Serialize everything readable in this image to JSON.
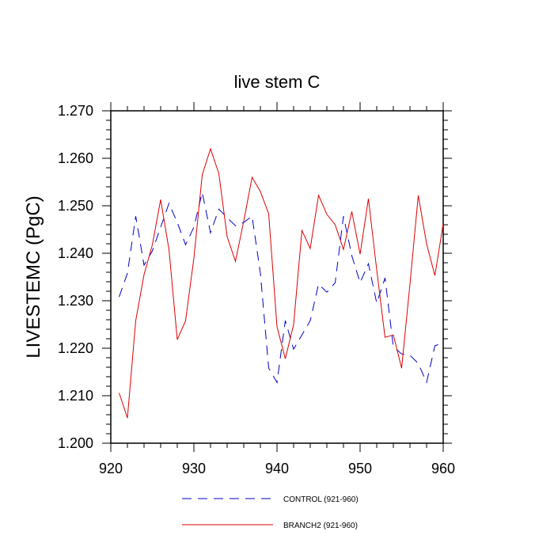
{
  "chart_data": {
    "type": "line",
    "title": "live stem C",
    "xlabel": "",
    "ylabel": "LIVESTEMC  (PgC)",
    "xlim": [
      920,
      960
    ],
    "ylim": [
      1.2,
      1.27
    ],
    "xticks": [
      920,
      930,
      940,
      950,
      960
    ],
    "xtick_labels": [
      "920",
      "930",
      "940",
      "950",
      "960"
    ],
    "yticks": [
      1.2,
      1.21,
      1.22,
      1.23,
      1.24,
      1.25,
      1.26,
      1.27
    ],
    "ytick_labels": [
      "1.200",
      "1.210",
      "1.220",
      "1.230",
      "1.240",
      "1.250",
      "1.260",
      "1.270"
    ],
    "grid": false,
    "legend_position": "bottom-center",
    "x": [
      921,
      922,
      923,
      924,
      925,
      926,
      927,
      928,
      929,
      930,
      931,
      932,
      933,
      934,
      935,
      936,
      937,
      938,
      939,
      940,
      941,
      942,
      943,
      944,
      945,
      946,
      947,
      948,
      949,
      950,
      951,
      952,
      953,
      954,
      955,
      956,
      957,
      958,
      959,
      960
    ],
    "series": [
      {
        "name": "CONTROL (921-960)",
        "color": "#0000cc",
        "style": "dashed",
        "values": [
          1.2308,
          1.2358,
          1.2478,
          1.2375,
          1.2405,
          1.2455,
          1.2505,
          1.2465,
          1.2418,
          1.2455,
          1.2528,
          1.2443,
          1.2493,
          1.2475,
          1.2458,
          1.2465,
          1.2478,
          1.2358,
          1.2158,
          1.2128,
          1.2258,
          1.2198,
          1.2228,
          1.2258,
          1.2335,
          1.2318,
          1.2338,
          1.2478,
          1.2395,
          1.2338,
          1.2378,
          1.2295,
          1.2348,
          1.2203,
          1.2188,
          1.2185,
          1.2168,
          1.2128,
          1.2205,
          1.2212
        ]
      },
      {
        "name": "BRANCH2 (921-960)",
        "color": "#dd0000",
        "style": "solid",
        "values": [
          1.2106,
          1.2053,
          1.2258,
          1.2355,
          1.2418,
          1.2513,
          1.2408,
          1.2218,
          1.2258,
          1.239,
          1.2565,
          1.262,
          1.2568,
          1.2435,
          1.2383,
          1.2468,
          1.256,
          1.253,
          1.2483,
          1.2245,
          1.2178,
          1.225,
          1.2448,
          1.241,
          1.2522,
          1.2482,
          1.246,
          1.2408,
          1.2488,
          1.2398,
          1.2515,
          1.2365,
          1.2223,
          1.2228,
          1.2158,
          1.2335,
          1.2522,
          1.242,
          1.2353,
          1.2462
        ]
      }
    ]
  }
}
